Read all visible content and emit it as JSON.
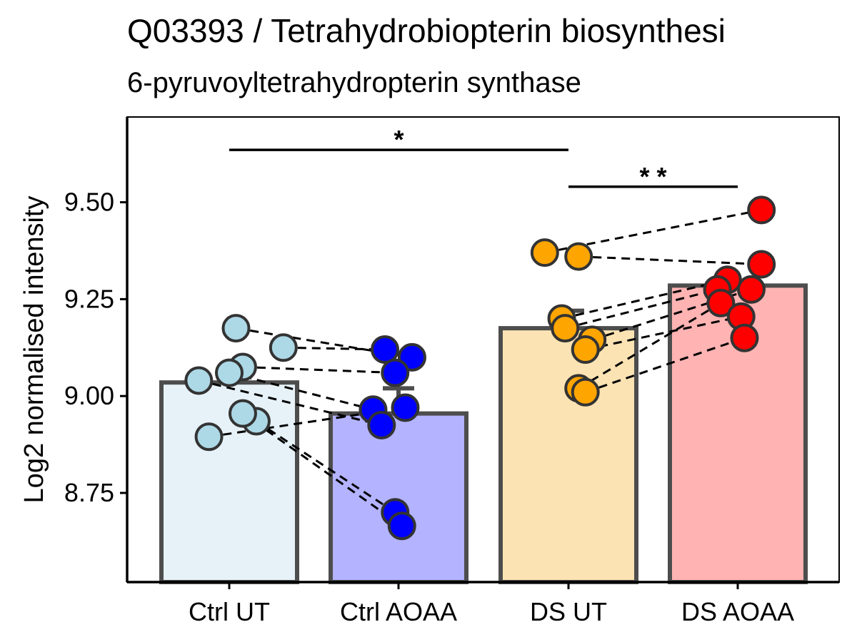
{
  "chart_data": {
    "type": "bar",
    "title": "Q03393 /  Tetrahydrobiopterin biosynthesi",
    "subtitle": "6-pyruvoyltetrahydropterin synthase",
    "xlabel": "",
    "ylabel": "Log2 normalised intensity",
    "ylim": [
      8.52,
      9.72
    ],
    "yticks": [
      {
        "value": 8.75,
        "label": "8.75"
      },
      {
        "value": 9.0,
        "label": "9.00"
      },
      {
        "value": 9.25,
        "label": "9.25"
      },
      {
        "value": 9.5,
        "label": "9.50"
      }
    ],
    "categories": [
      "Ctrl UT",
      "Ctrl AOAA",
      "DS UT",
      "DS AOAA"
    ],
    "values": [
      9.035,
      8.955,
      9.175,
      9.285
    ],
    "error_upper": [
      9.035,
      9.02,
      9.22,
      9.285
    ],
    "bar_fill": [
      "#e6f2f8",
      "#b3b3ff",
      "#fbe3b3",
      "#ffb3b3"
    ],
    "point_fill": [
      "#add8e6",
      "#0000ff",
      "#ffa500",
      "#ff0000"
    ],
    "bar_edge": "#4d4d4d",
    "points": [
      [
        {
          "j": 0.04,
          "y": 9.175
        },
        {
          "j": 0.32,
          "y": 9.125
        },
        {
          "j": 0.08,
          "y": 9.075
        },
        {
          "j": 0.0,
          "y": 9.06
        },
        {
          "j": -0.18,
          "y": 9.04
        },
        {
          "j": 0.16,
          "y": 8.935
        },
        {
          "j": 0.08,
          "y": 8.955
        },
        {
          "j": -0.12,
          "y": 8.895
        }
      ],
      [
        {
          "j": -0.08,
          "y": 9.12
        },
        {
          "j": 0.08,
          "y": 9.1
        },
        {
          "j": -0.02,
          "y": 9.06
        },
        {
          "j": -0.15,
          "y": 8.965
        },
        {
          "j": -0.1,
          "y": 8.925
        },
        {
          "j": -0.02,
          "y": 8.7
        },
        {
          "j": 0.02,
          "y": 8.665
        },
        {
          "j": 0.04,
          "y": 8.97
        }
      ],
      [
        {
          "j": -0.14,
          "y": 9.37
        },
        {
          "j": 0.06,
          "y": 9.36
        },
        {
          "j": -0.04,
          "y": 9.2
        },
        {
          "j": -0.02,
          "y": 9.175
        },
        {
          "j": 0.14,
          "y": 9.145
        },
        {
          "j": 0.1,
          "y": 9.12
        },
        {
          "j": 0.06,
          "y": 9.02
        },
        {
          "j": 0.1,
          "y": 9.01
        }
      ],
      [
        {
          "j": 0.14,
          "y": 9.48
        },
        {
          "j": 0.14,
          "y": 9.34
        },
        {
          "j": -0.06,
          "y": 9.3
        },
        {
          "j": -0.12,
          "y": 9.275
        },
        {
          "j": 0.08,
          "y": 9.275
        },
        {
          "j": -0.1,
          "y": 9.24
        },
        {
          "j": 0.02,
          "y": 9.205
        },
        {
          "j": 0.04,
          "y": 9.15
        }
      ]
    ],
    "pairs": [
      [
        [
          0,
          0
        ],
        [
          1,
          1
        ]
      ],
      [
        [
          0,
          1
        ],
        [
          1,
          0
        ]
      ],
      [
        [
          0,
          2
        ],
        [
          1,
          2
        ]
      ],
      [
        [
          0,
          3
        ],
        [
          1,
          3
        ]
      ],
      [
        [
          0,
          4
        ],
        [
          1,
          4
        ]
      ],
      [
        [
          0,
          5
        ],
        [
          1,
          5
        ]
      ],
      [
        [
          0,
          6
        ],
        [
          1,
          6
        ]
      ],
      [
        [
          0,
          7
        ],
        [
          1,
          7
        ]
      ],
      [
        [
          2,
          0
        ],
        [
          3,
          0
        ]
      ],
      [
        [
          2,
          1
        ],
        [
          3,
          1
        ]
      ],
      [
        [
          2,
          2
        ],
        [
          3,
          2
        ]
      ],
      [
        [
          2,
          3
        ],
        [
          3,
          3
        ]
      ],
      [
        [
          2,
          4
        ],
        [
          3,
          4
        ]
      ],
      [
        [
          2,
          5
        ],
        [
          3,
          6
        ]
      ],
      [
        [
          2,
          6
        ],
        [
          3,
          5
        ]
      ],
      [
        [
          2,
          7
        ],
        [
          3,
          7
        ]
      ]
    ],
    "significance": [
      {
        "from": 0,
        "to": 2,
        "y": 9.635,
        "label": "*"
      },
      {
        "from": 2,
        "to": 3,
        "y": 9.54,
        "label": "* *"
      }
    ],
    "grid": false,
    "legend": "none"
  }
}
